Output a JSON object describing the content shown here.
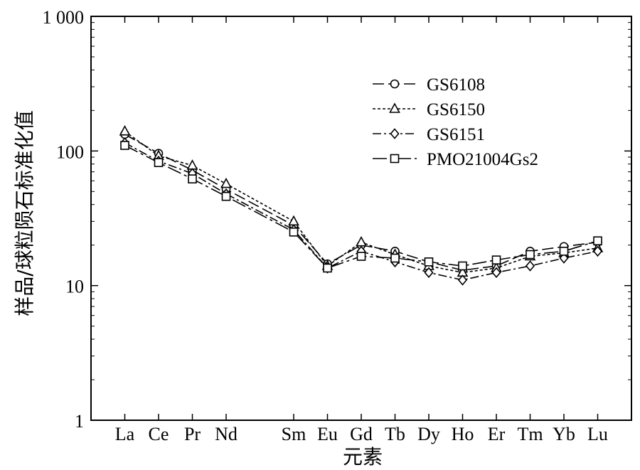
{
  "chart_data": {
    "type": "line",
    "title": "",
    "xlabel": "元素",
    "ylabel": "样品/球粒陨石标准化值",
    "yscale": "log",
    "ylim": [
      1,
      1000
    ],
    "yticks": [
      {
        "value": 1,
        "label": "1"
      },
      {
        "value": 10,
        "label": "10"
      },
      {
        "value": 100,
        "label": "100"
      },
      {
        "value": 1000,
        "label": "1 000"
      }
    ],
    "categories": [
      "La",
      "Ce",
      "Pr",
      "Nd",
      "Sm",
      "Eu",
      "Gd",
      "Tb",
      "Dy",
      "Ho",
      "Er",
      "Tm",
      "Yb",
      "Lu"
    ],
    "category_positions": [
      1,
      2,
      3,
      4,
      6,
      7,
      8,
      9,
      10,
      11,
      12,
      13,
      14,
      15
    ],
    "xlim": [
      0,
      16
    ],
    "legend_position": "top-right",
    "series": [
      {
        "name": "GS6108",
        "marker": "circle",
        "dash": "long-dash",
        "values": [
          133,
          96,
          72,
          52,
          28,
          14.5,
          20,
          18,
          15,
          13,
          14,
          18,
          19.5,
          21
        ]
      },
      {
        "name": "GS6150",
        "marker": "triangle",
        "dash": "short-dash",
        "values": [
          140,
          92,
          78,
          57,
          30,
          14,
          21,
          17,
          14,
          12.5,
          13.5,
          16.5,
          17.5,
          19
        ]
      },
      {
        "name": "GS6151",
        "marker": "diamond",
        "dash": "dash-dot",
        "values": [
          115,
          84,
          68,
          48,
          26,
          13.5,
          18,
          15,
          12.5,
          11,
          12.5,
          14,
          16,
          18
        ]
      },
      {
        "name": "PMO21004Gs2",
        "marker": "square",
        "dash": "dash-dot-long",
        "values": [
          110,
          82,
          62,
          46,
          25,
          13.5,
          16.5,
          16,
          15,
          14,
          15.5,
          17,
          18,
          21.5
        ]
      }
    ]
  }
}
